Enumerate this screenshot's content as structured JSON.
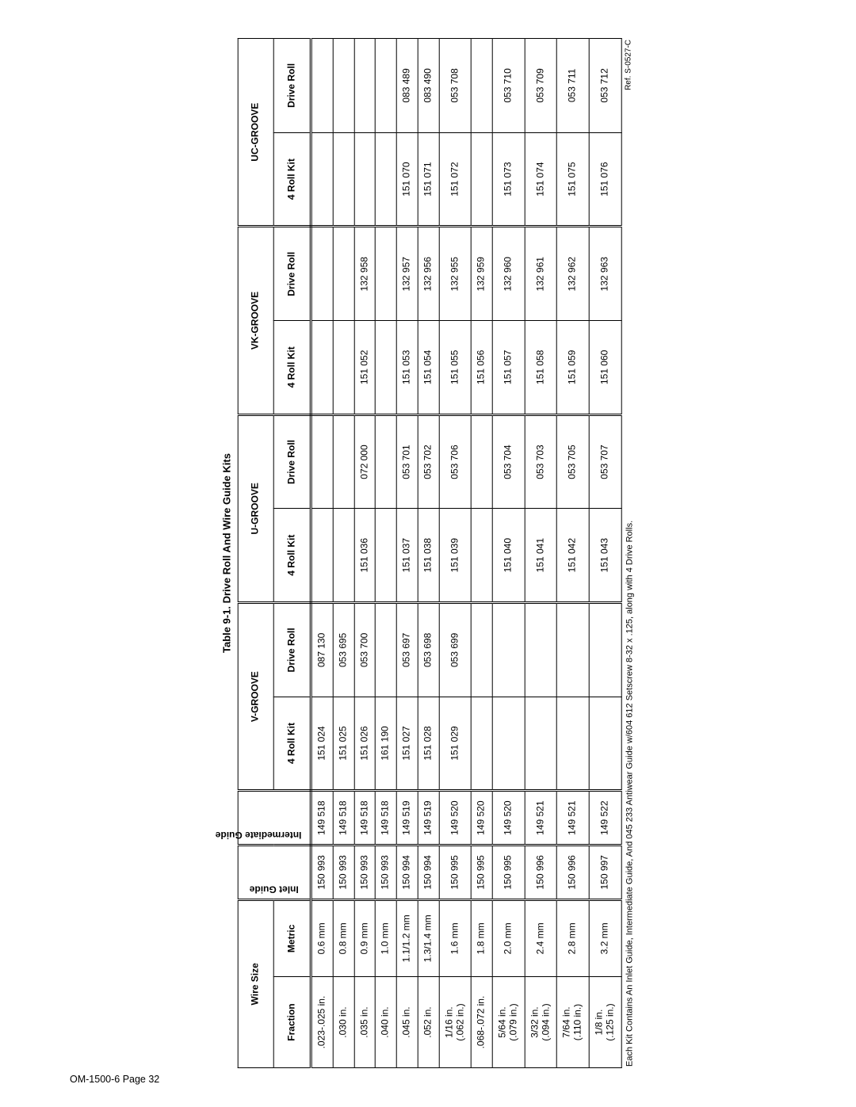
{
  "page_footer": "OM-1500-6 Page 32",
  "title": "Table 9-1. Drive Roll And Wire Guide Kits",
  "ref": "Ref. S-0527-C",
  "footnote": "Each Kit Contains An Inlet Guide, Intermediate Guide, And 045 233 Antiwear Guide w/604 612 Setscrew 8-32 x .125, along with 4 Drive Rolls.",
  "headers": {
    "wire_size": "Wire Size",
    "fraction": "Fraction",
    "metric": "Metric",
    "inlet_guide": "Inlet Guide",
    "intermediate_guide": "Intermediate Guide",
    "vgroove": "V-GROOVE",
    "ugroove": "U-GROOVE",
    "vkgroove": "VK-GROOVE",
    "ucgroove": "UC-GROOVE",
    "four_roll_kit": "4 Roll Kit",
    "drive_roll": "Drive Roll"
  },
  "rows": [
    {
      "fraction": ".023-.025 in.",
      "metric": "0.6 mm",
      "inlet": "150 993",
      "intermediate": "149 518",
      "v_kit": "151 024",
      "v_roll": "087 130",
      "u_kit": "",
      "u_roll": "",
      "vk_kit": "",
      "vk_roll": "",
      "uc_kit": "",
      "uc_roll": ""
    },
    {
      "fraction": ".030 in.",
      "metric": "0.8 mm",
      "inlet": "150 993",
      "intermediate": "149 518",
      "v_kit": "151 025",
      "v_roll": "053 695",
      "u_kit": "",
      "u_roll": "",
      "vk_kit": "",
      "vk_roll": "",
      "uc_kit": "",
      "uc_roll": ""
    },
    {
      "fraction": ".035 in.",
      "metric": "0.9 mm",
      "inlet": "150 993",
      "intermediate": "149 518",
      "v_kit": "151 026",
      "v_roll": "053 700",
      "u_kit": "151 036",
      "u_roll": "072 000",
      "vk_kit": "151 052",
      "vk_roll": "132 958",
      "uc_kit": "",
      "uc_roll": ""
    },
    {
      "fraction": ".040 in.",
      "metric": "1.0 mm",
      "inlet": "150 993",
      "intermediate": "149 518",
      "v_kit": "161 190",
      "v_roll": "",
      "u_kit": "",
      "u_roll": "",
      "vk_kit": "",
      "vk_roll": "",
      "uc_kit": "",
      "uc_roll": ""
    },
    {
      "fraction": ".045 in.",
      "metric": "1.1/1.2 mm",
      "inlet": "150 994",
      "intermediate": "149 519",
      "v_kit": "151 027",
      "v_roll": "053 697",
      "u_kit": "151 037",
      "u_roll": "053 701",
      "vk_kit": "151 053",
      "vk_roll": "132 957",
      "uc_kit": "151 070",
      "uc_roll": "083 489"
    },
    {
      "fraction": ".052 in.",
      "metric": "1.3/1.4 mm",
      "inlet": "150 994",
      "intermediate": "149 519",
      "v_kit": "151 028",
      "v_roll": "053 698",
      "u_kit": "151 038",
      "u_roll": "053 702",
      "vk_kit": "151 054",
      "vk_roll": "132 956",
      "uc_kit": "151 071",
      "uc_roll": "083 490"
    },
    {
      "fraction": "1/16 in.<br>(.062 in.)",
      "metric": "1.6 mm",
      "inlet": "150 995",
      "intermediate": "149 520",
      "v_kit": "151 029",
      "v_roll": "053 699",
      "u_kit": "151 039",
      "u_roll": "053 706",
      "vk_kit": "151 055",
      "vk_roll": "132 955",
      "uc_kit": "151 072",
      "uc_roll": "053 708"
    },
    {
      "fraction": ".068-.072 in.",
      "metric": "1.8 mm",
      "inlet": "150 995",
      "intermediate": "149 520",
      "v_kit": "",
      "v_roll": "",
      "u_kit": "",
      "u_roll": "",
      "vk_kit": "151 056",
      "vk_roll": "132 959",
      "uc_kit": "",
      "uc_roll": ""
    },
    {
      "fraction": "5/64 in.<br>(.079 in.)",
      "metric": "2.0 mm",
      "inlet": "150 995",
      "intermediate": "149 520",
      "v_kit": "",
      "v_roll": "",
      "u_kit": "151 040",
      "u_roll": "053 704",
      "vk_kit": "151 057",
      "vk_roll": "132 960",
      "uc_kit": "151 073",
      "uc_roll": "053 710"
    },
    {
      "fraction": "3/32 in.<br>(.094 in.)",
      "metric": "2.4 mm",
      "inlet": "150 996",
      "intermediate": "149 521",
      "v_kit": "",
      "v_roll": "",
      "u_kit": "151 041",
      "u_roll": "053 703",
      "vk_kit": "151 058",
      "vk_roll": "132 961",
      "uc_kit": "151 074",
      "uc_roll": "053 709"
    },
    {
      "fraction": "7/64 in.<br>(.110 in.)",
      "metric": "2.8 mm",
      "inlet": "150 996",
      "intermediate": "149 521",
      "v_kit": "",
      "v_roll": "",
      "u_kit": "151 042",
      "u_roll": "053 705",
      "vk_kit": "151 059",
      "vk_roll": "132 962",
      "uc_kit": "151 075",
      "uc_roll": "053 711"
    },
    {
      "fraction": "1/8 in.<br>(.125 in.)",
      "metric": "3.2 mm",
      "inlet": "150 997",
      "intermediate": "149 522",
      "v_kit": "",
      "v_roll": "",
      "u_kit": "151 043",
      "u_roll": "053 707",
      "vk_kit": "151 060",
      "vk_roll": "132 963",
      "uc_kit": "151 076",
      "uc_roll": "053 712"
    }
  ],
  "col_widths": {
    "fraction": "92px",
    "metric": "78px",
    "inlet": "55px",
    "intermediate": "55px",
    "groove_sub": "95px"
  }
}
